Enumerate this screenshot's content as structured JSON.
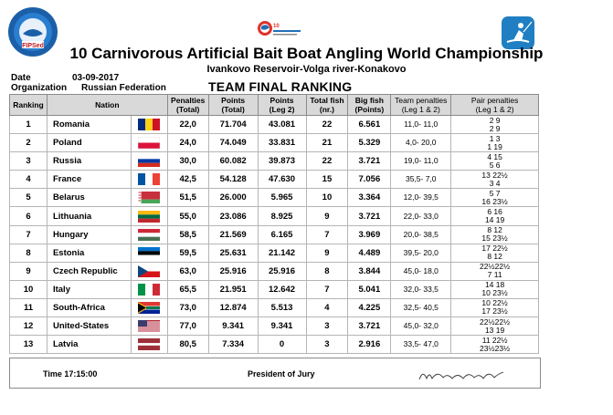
{
  "header": {
    "title": "10 Carnivorous Artificial Bait Boat Angling World Championship",
    "subtitle": "Ivankovo Reservoir-Volga river-Konakovo",
    "logo_left_text": "FIPSed",
    "logo_center_text": "10 WORLD CHAMPIONSHIP",
    "logo_right_icon": "angler-icon"
  },
  "meta": {
    "date_label": "Date",
    "date_value": "03-09-2017",
    "org_label": "Organization",
    "org_value": "Russian Federation"
  },
  "table_title": "TEAM FINAL RANKING",
  "columns": {
    "ranking": "Ranking",
    "nation": "Nation",
    "penalties_1": "Penalties",
    "penalties_2": "(Total)",
    "points_1": "Points",
    "points_2": "(Total)",
    "points_leg2_1": "Points",
    "points_leg2_2": "(Leg 2)",
    "total_fish_1": "Total fish",
    "total_fish_2": "(nr.)",
    "big_fish_1": "Big fish",
    "big_fish_2": "(Points)",
    "team_pen_1": "Team penalties",
    "team_pen_2": "(Leg 1 & 2)",
    "pair_pen_1": "Pair penalties",
    "pair_pen_2": "(Leg 1 & 2)"
  },
  "rows": [
    {
      "rank": "1",
      "nation": "Romania",
      "flag": "romania",
      "penalties": "22,0",
      "points": "71.704",
      "leg2": "43.081",
      "fish": "22",
      "big": "6.561",
      "team": "11,0- 11,0",
      "pair1": "2  9",
      "pair2": "2  9"
    },
    {
      "rank": "2",
      "nation": "Poland",
      "flag": "poland",
      "penalties": "24,0",
      "points": "74.049",
      "leg2": "33.831",
      "fish": "21",
      "big": "5.329",
      "team": "4,0- 20,0",
      "pair1": "1  3",
      "pair2": "1 19"
    },
    {
      "rank": "3",
      "nation": "Russia",
      "flag": "russia",
      "penalties": "30,0",
      "points": "60.082",
      "leg2": "39.873",
      "fish": "22",
      "big": "3.721",
      "team": "19,0- 11,0",
      "pair1": "4 15",
      "pair2": "5  6"
    },
    {
      "rank": "4",
      "nation": "France",
      "flag": "france",
      "penalties": "42,5",
      "points": "54.128",
      "leg2": "47.630",
      "fish": "15",
      "big": "7.056",
      "team": "35,5-  7,0",
      "pair1": "13 22½",
      "pair2": "3  4"
    },
    {
      "rank": "5",
      "nation": "Belarus",
      "flag": "belarus",
      "penalties": "51,5",
      "points": "26.000",
      "leg2": "5.965",
      "fish": "10",
      "big": "3.364",
      "team": "12,0- 39,5",
      "pair1": "5  7",
      "pair2": "16 23½"
    },
    {
      "rank": "6",
      "nation": "Lithuania",
      "flag": "lithuania",
      "penalties": "55,0",
      "points": "23.086",
      "leg2": "8.925",
      "fish": "9",
      "big": "3.721",
      "team": "22,0- 33,0",
      "pair1": "6 16",
      "pair2": "14 19"
    },
    {
      "rank": "7",
      "nation": "Hungary",
      "flag": "hungary",
      "penalties": "58,5",
      "points": "21.569",
      "leg2": "6.165",
      "fish": "7",
      "big": "3.969",
      "team": "20,0- 38,5",
      "pair1": "8 12",
      "pair2": "15 23½"
    },
    {
      "rank": "8",
      "nation": "Estonia",
      "flag": "estonia",
      "penalties": "59,5",
      "points": "25.631",
      "leg2": "21.142",
      "fish": "9",
      "big": "4.489",
      "team": "39,5- 20,0",
      "pair1": "17 22½",
      "pair2": "8 12"
    },
    {
      "rank": "9",
      "nation": "Czech Republic",
      "flag": "czech",
      "penalties": "63,0",
      "points": "25.916",
      "leg2": "25.916",
      "fish": "8",
      "big": "3.844",
      "team": "45,0- 18,0",
      "pair1": "22½22½",
      "pair2": "7 11"
    },
    {
      "rank": "10",
      "nation": "Italy",
      "flag": "italy",
      "penalties": "65,5",
      "points": "21.951",
      "leg2": "12.642",
      "fish": "7",
      "big": "5.041",
      "team": "32,0- 33,5",
      "pair1": "14 18",
      "pair2": "10 23½"
    },
    {
      "rank": "11",
      "nation": "South-Africa",
      "flag": "southafrica",
      "penalties": "73,0",
      "points": "12.874",
      "leg2": "5.513",
      "fish": "4",
      "big": "4.225",
      "team": "32,5- 40,5",
      "pair1": "10 22½",
      "pair2": "17 23½"
    },
    {
      "rank": "12",
      "nation": "United-States",
      "flag": "usa",
      "penalties": "77,0",
      "points": "9.341",
      "leg2": "9.341",
      "fish": "3",
      "big": "3.721",
      "team": "45,0- 32,0",
      "pair1": "22½22½",
      "pair2": "13 19"
    },
    {
      "rank": "13",
      "nation": "Latvia",
      "flag": "latvia",
      "penalties": "80,5",
      "points": "7.334",
      "leg2": "0",
      "fish": "3",
      "big": "2.916",
      "team": "33,5- 47,0",
      "pair1": "11 22½",
      "pair2": "23½23½"
    }
  ],
  "footer": {
    "time": "Time  17:15:00",
    "jury": "President of Jury"
  }
}
